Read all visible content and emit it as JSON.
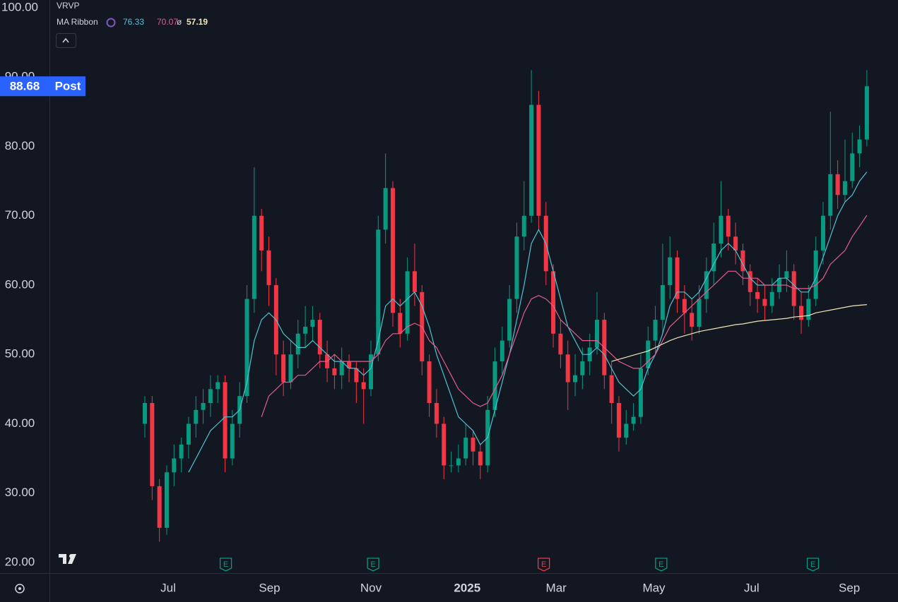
{
  "chart_data": {
    "type": "candlestick",
    "indicator_top": "VRVP",
    "indicator": {
      "name": "MA Ribbon",
      "symbol": "ø",
      "lines": [
        {
          "color": "#4fc3d3",
          "values": [
            null,
            null,
            null,
            null,
            null,
            null,
            33,
            35,
            37,
            39,
            40,
            41,
            41,
            42,
            46,
            52,
            55,
            56,
            55,
            53,
            52,
            51,
            51,
            52,
            51,
            50,
            49,
            49,
            48,
            48,
            47,
            48,
            52,
            57,
            58,
            57,
            58,
            59,
            57,
            54,
            50,
            47,
            44,
            41,
            40,
            39,
            37,
            38,
            42,
            46,
            50,
            55,
            60,
            66,
            68,
            66,
            62,
            58,
            54,
            52,
            50,
            50,
            51,
            50,
            48,
            46,
            45,
            44,
            45,
            48,
            50,
            53,
            57,
            59,
            59,
            58,
            59,
            61,
            63,
            65,
            66,
            65,
            63,
            61,
            60,
            60,
            60,
            61,
            61,
            60,
            59,
            59,
            61,
            64,
            67,
            70,
            72,
            73,
            75,
            76.33
          ]
        },
        {
          "color": "#e35d8f",
          "values": [
            null,
            null,
            null,
            null,
            null,
            null,
            null,
            null,
            null,
            null,
            null,
            null,
            null,
            null,
            null,
            null,
            41,
            44,
            45,
            46,
            46,
            47,
            47,
            48,
            49,
            49,
            50,
            49,
            49,
            49,
            49,
            49,
            50,
            52,
            53,
            53,
            54,
            54.5,
            54,
            52,
            51,
            49,
            47,
            45,
            44,
            43,
            42.5,
            43,
            45,
            47,
            50,
            53,
            56,
            58,
            58.5,
            58,
            57,
            55,
            54,
            53,
            52,
            52,
            52,
            51,
            50,
            49,
            48.5,
            48,
            48,
            49,
            50,
            52,
            54,
            55,
            56,
            57,
            58,
            59,
            60,
            61,
            62,
            62,
            61,
            61,
            61,
            60,
            60,
            60,
            60,
            59.5,
            59.5,
            59.5,
            60,
            61,
            63,
            64,
            65,
            67,
            68.5,
            70.07
          ]
        },
        {
          "color": "#f2e6b8",
          "values": [
            null,
            null,
            null,
            null,
            null,
            null,
            null,
            null,
            null,
            null,
            null,
            null,
            null,
            null,
            null,
            null,
            null,
            null,
            null,
            null,
            null,
            null,
            null,
            null,
            null,
            null,
            null,
            null,
            null,
            null,
            null,
            null,
            null,
            null,
            null,
            null,
            null,
            null,
            null,
            null,
            null,
            null,
            null,
            null,
            null,
            null,
            null,
            null,
            null,
            null,
            null,
            null,
            null,
            null,
            null,
            null,
            null,
            null,
            null,
            null,
            null,
            null,
            null,
            null,
            49,
            49.3,
            49.6,
            49.9,
            50.2,
            50.5,
            51,
            51.5,
            52,
            52.4,
            52.7,
            53,
            53.3,
            53.5,
            53.7,
            53.9,
            54.1,
            54.3,
            54.4,
            54.6,
            54.8,
            54.9,
            55,
            55.1,
            55.2,
            55.4,
            55.5,
            55.6,
            56,
            56.2,
            56.4,
            56.6,
            56.8,
            57,
            57.1,
            57.19
          ]
        }
      ]
    },
    "candles": {
      "open": [
        40,
        43,
        31,
        25,
        33,
        35,
        37,
        40,
        42,
        43,
        45,
        46,
        35,
        40,
        44,
        58,
        70,
        65,
        60,
        50,
        46,
        50,
        53,
        54,
        55,
        50,
        48,
        47,
        49,
        48,
        46,
        45,
        50,
        68,
        74,
        56,
        53,
        62,
        59,
        49,
        43,
        40,
        34,
        34,
        35,
        38,
        36,
        34,
        42,
        49,
        52,
        58,
        67,
        70,
        86,
        70,
        62,
        53,
        50,
        46,
        47,
        49,
        51,
        55,
        47,
        43,
        38,
        40,
        41,
        48,
        52,
        55,
        60,
        64,
        58,
        56,
        54,
        58,
        62,
        66,
        70,
        67,
        65,
        62,
        59,
        58,
        57,
        59,
        61,
        62,
        57,
        55,
        58,
        65,
        70,
        76,
        73,
        75,
        79,
        81
      ],
      "high": [
        44,
        44,
        32,
        34,
        37,
        38,
        41,
        44,
        45,
        47,
        47,
        47,
        42,
        46,
        60,
        77,
        71,
        67,
        61,
        52,
        52,
        55,
        57,
        57,
        56,
        52,
        50,
        51,
        50,
        49,
        48,
        52,
        70,
        79,
        75,
        58,
        64,
        66,
        60,
        50,
        45,
        41,
        36,
        37,
        40,
        39,
        37,
        44,
        51,
        54,
        60,
        69,
        75,
        91,
        88,
        72,
        63,
        55,
        52,
        50,
        51,
        53,
        59,
        56,
        49,
        44,
        42,
        43,
        50,
        54,
        57,
        66,
        67,
        65,
        60,
        58,
        60,
        64,
        69,
        75,
        71,
        69,
        66,
        63,
        61,
        60,
        61,
        63,
        65,
        63,
        59,
        60,
        67,
        72,
        85,
        78,
        81,
        82,
        83,
        91
      ],
      "low": [
        38,
        29,
        23,
        24,
        31,
        33,
        35,
        38,
        40,
        41,
        43,
        33,
        34,
        38,
        43,
        56,
        62,
        57,
        47,
        44,
        45,
        48,
        51,
        52,
        48,
        46,
        45,
        45,
        46,
        43,
        40,
        44,
        49,
        66,
        54,
        51,
        52,
        57,
        47,
        41,
        38,
        32,
        33,
        33,
        34,
        34,
        32,
        33,
        41,
        47,
        51,
        56,
        65,
        69,
        68,
        60,
        51,
        48,
        42,
        44,
        45,
        47,
        50,
        45,
        40,
        36,
        37,
        39,
        40,
        47,
        50,
        53,
        58,
        56,
        53,
        52,
        53,
        56,
        60,
        64,
        65,
        63,
        60,
        57,
        56,
        55,
        56,
        58,
        59,
        55,
        53,
        54,
        57,
        63,
        68,
        71,
        72,
        74,
        77,
        80
      ],
      "close": [
        43,
        31,
        25,
        33,
        35,
        37,
        40,
        42,
        43,
        45,
        46,
        35,
        40,
        44,
        58,
        70,
        65,
        60,
        50,
        46,
        50,
        53,
        54,
        55,
        50,
        48,
        47,
        49,
        48,
        46,
        45,
        50,
        68,
        74,
        56,
        53,
        62,
        59,
        49,
        43,
        40,
        34,
        34,
        35,
        38,
        36,
        34,
        42,
        49,
        52,
        58,
        67,
        70,
        86,
        70,
        62,
        53,
        50,
        46,
        47,
        49,
        51,
        55,
        47,
        43,
        38,
        40,
        41,
        48,
        52,
        55,
        60,
        64,
        58,
        56,
        54,
        58,
        62,
        66,
        70,
        67,
        65,
        62,
        59,
        58,
        57,
        59,
        61,
        62,
        57,
        55,
        58,
        65,
        70,
        76,
        73,
        75,
        79,
        81,
        88.68
      ]
    },
    "colors": {
      "up": "#089981",
      "down": "#f23645"
    },
    "price_tag": "Post",
    "price_tag_color": "#2962ff",
    "xlim": [
      -13.08,
      103.27
    ],
    "ylim": [
      18.47,
      101.12
    ],
    "yticks": [
      {
        "value": 20,
        "label": "20.00"
      },
      {
        "value": 30,
        "label": "30.00"
      },
      {
        "value": 40,
        "label": "40.00"
      },
      {
        "value": 50,
        "label": "50.00"
      },
      {
        "value": 60,
        "label": "60.00"
      },
      {
        "value": 70,
        "label": "70.00"
      },
      {
        "value": 80,
        "label": "80.00"
      },
      {
        "value": 90,
        "label": "90.00"
      },
      {
        "value": 100,
        "label": "100.00"
      }
    ],
    "xticks": [
      {
        "value": 3.2,
        "label": "Jul"
      },
      {
        "value": 17.1,
        "label": "Sep"
      },
      {
        "value": 31.0,
        "label": "Nov"
      },
      {
        "value": 44.2,
        "label": "2025"
      },
      {
        "value": 56.4,
        "label": "Mar"
      },
      {
        "value": 69.8,
        "label": "May"
      },
      {
        "value": 83.2,
        "label": "Jul"
      },
      {
        "value": 96.6,
        "label": "Sep"
      }
    ],
    "events": [
      {
        "x": 11.1,
        "label": "E",
        "color": "#089981"
      },
      {
        "x": 31.3,
        "label": "E",
        "color": "#089981"
      },
      {
        "x": 54.7,
        "label": "E",
        "color": "#f23645"
      },
      {
        "x": 70.8,
        "label": "E",
        "color": "#089981"
      },
      {
        "x": 91.6,
        "label": "E",
        "color": "#089981"
      }
    ],
    "grid": false
  }
}
